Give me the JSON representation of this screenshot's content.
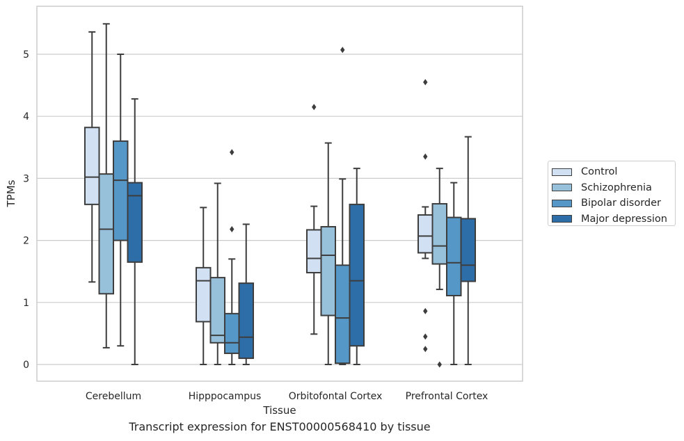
{
  "chart_data": {
    "type": "box",
    "title": "Transcript expression for ENST00000568410 by tissue",
    "xlabel": "Tissue",
    "ylabel": "TPMs",
    "ylim": [
      -0.26,
      5.78
    ],
    "yticks": [
      0,
      1,
      2,
      3,
      4,
      5
    ],
    "grid": true,
    "legend_position": "right",
    "categories": [
      "Cerebellum",
      "Hipppocampus",
      "Orbitofontal Cortex",
      "Prefrontal Cortex"
    ],
    "series": [
      {
        "name": "Control",
        "color": "#d1e0f2",
        "boxes": [
          {
            "whisker_low": 1.33,
            "q1": 2.58,
            "median": 3.02,
            "q3": 3.82,
            "whisker_high": 5.36,
            "outliers": []
          },
          {
            "whisker_low": 0.0,
            "q1": 0.69,
            "median": 1.35,
            "q3": 1.56,
            "whisker_high": 2.53,
            "outliers": []
          },
          {
            "whisker_low": 0.49,
            "q1": 1.48,
            "median": 1.71,
            "q3": 2.17,
            "whisker_high": 2.55,
            "outliers": [
              4.15
            ]
          },
          {
            "whisker_low": 1.71,
            "q1": 1.8,
            "median": 2.07,
            "q3": 2.41,
            "whisker_high": 2.54,
            "outliers": [
              4.55,
              3.35,
              0.86,
              0.45,
              0.25
            ]
          }
        ]
      },
      {
        "name": "Schizophrenia",
        "color": "#97c0da",
        "boxes": [
          {
            "whisker_low": 0.27,
            "q1": 1.14,
            "median": 2.18,
            "q3": 3.07,
            "whisker_high": 5.49,
            "outliers": []
          },
          {
            "whisker_low": 0.0,
            "q1": 0.35,
            "median": 0.47,
            "q3": 1.4,
            "whisker_high": 2.92,
            "outliers": []
          },
          {
            "whisker_low": 0.0,
            "q1": 0.79,
            "median": 1.76,
            "q3": 2.22,
            "whisker_high": 3.57,
            "outliers": []
          },
          {
            "whisker_low": 1.21,
            "q1": 1.62,
            "median": 1.91,
            "q3": 2.59,
            "whisker_high": 3.16,
            "outliers": [
              0.0
            ]
          }
        ]
      },
      {
        "name": "Bipolar disorder",
        "color": "#5597c6",
        "boxes": [
          {
            "whisker_low": 0.3,
            "q1": 2.0,
            "median": 2.97,
            "q3": 3.6,
            "whisker_high": 5.0,
            "outliers": []
          },
          {
            "whisker_low": 0.0,
            "q1": 0.18,
            "median": 0.35,
            "q3": 0.82,
            "whisker_high": 1.7,
            "outliers": [
              3.42,
              2.18
            ]
          },
          {
            "whisker_low": 0.0,
            "q1": 0.02,
            "median": 0.75,
            "q3": 1.6,
            "whisker_high": 2.99,
            "outliers": [
              5.07
            ]
          },
          {
            "whisker_low": 0.0,
            "q1": 1.11,
            "median": 1.64,
            "q3": 2.37,
            "whisker_high": 2.93,
            "outliers": []
          }
        ]
      },
      {
        "name": "Major depression",
        "color": "#2e6ea8",
        "boxes": [
          {
            "whisker_low": 0.0,
            "q1": 1.65,
            "median": 2.72,
            "q3": 2.93,
            "whisker_high": 4.28,
            "outliers": []
          },
          {
            "whisker_low": 0.0,
            "q1": 0.1,
            "median": 0.44,
            "q3": 1.31,
            "whisker_high": 2.26,
            "outliers": []
          },
          {
            "whisker_low": 0.0,
            "q1": 0.3,
            "median": 1.35,
            "q3": 2.58,
            "whisker_high": 3.16,
            "outliers": []
          },
          {
            "whisker_low": 0.0,
            "q1": 1.34,
            "median": 1.6,
            "q3": 2.35,
            "whisker_high": 3.67,
            "outliers": []
          }
        ]
      }
    ]
  }
}
